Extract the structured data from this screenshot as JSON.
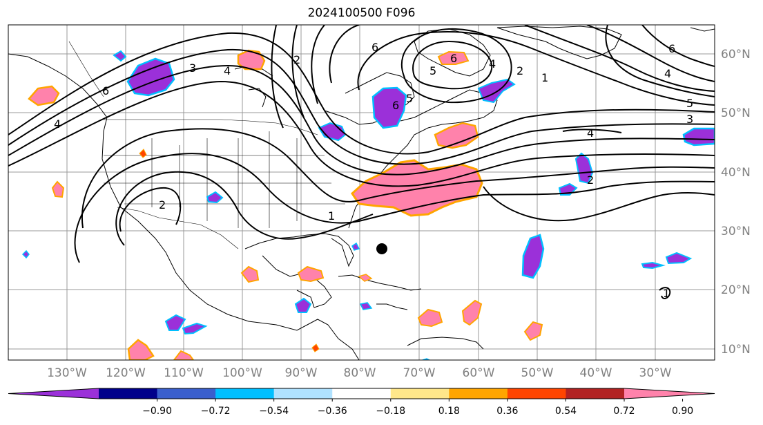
{
  "title": "2024100500 F096",
  "latitude_labels": [
    "60°N",
    "50°N",
    "40°N",
    "30°N",
    "20°N",
    "10°N"
  ],
  "longitude_labels": [
    "130°W",
    "120°W",
    "110°W",
    "100°W",
    "90°W",
    "80°W",
    "70°W",
    "60°W",
    "50°W",
    "40°W",
    "30°W"
  ],
  "colorbar": {
    "tick_labels": [
      "−0.90",
      "−0.72",
      "−0.54",
      "−0.36",
      "−0.18",
      "0.18",
      "0.36",
      "0.54",
      "0.72",
      "0.90"
    ],
    "colors": [
      "#9b30d9",
      "#00008b",
      "#3a5fcd",
      "#00bfff",
      "#b0e2ff",
      "#ffffff",
      "#ffe78a",
      "#ffa500",
      "#ff4500",
      "#b22222",
      "#ff82ab"
    ],
    "extend": "both"
  },
  "contour_labels": [
    "6",
    "4",
    "2",
    "3",
    "4",
    "6",
    "5",
    "6",
    "5",
    "4",
    "2",
    "1",
    "6",
    "4",
    "5",
    "3",
    "4",
    "2",
    "1",
    "2",
    "1",
    "6"
  ],
  "contour_label_colors": {
    "line": "#000000"
  },
  "marker": {
    "color": "#000000"
  }
}
